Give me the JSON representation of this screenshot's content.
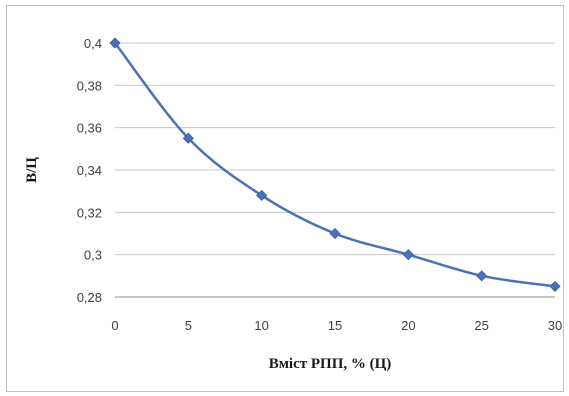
{
  "chart_data": {
    "type": "line",
    "title": "",
    "xlabel": "Вміст РПП, % (Ц)",
    "ylabel": "В/Ц",
    "x": [
      0,
      5,
      10,
      15,
      20,
      25,
      30
    ],
    "series": [
      {
        "values": [
          0.4,
          0.355,
          0.328,
          0.31,
          0.3,
          0.29,
          0.285
        ]
      }
    ],
    "xlim": [
      0,
      30
    ],
    "ylim": [
      0.28,
      0.4
    ],
    "x_ticks": [
      "0",
      "5",
      "10",
      "15",
      "20",
      "25",
      "30"
    ],
    "y_ticks": [
      "0,4",
      "0,38",
      "0,36",
      "0,34",
      "0,32",
      "0,3",
      "0,28"
    ],
    "grid": "horizontal",
    "line_color": "#4a72b8",
    "marker_color": "#4a72b8",
    "marker": "diamond"
  }
}
